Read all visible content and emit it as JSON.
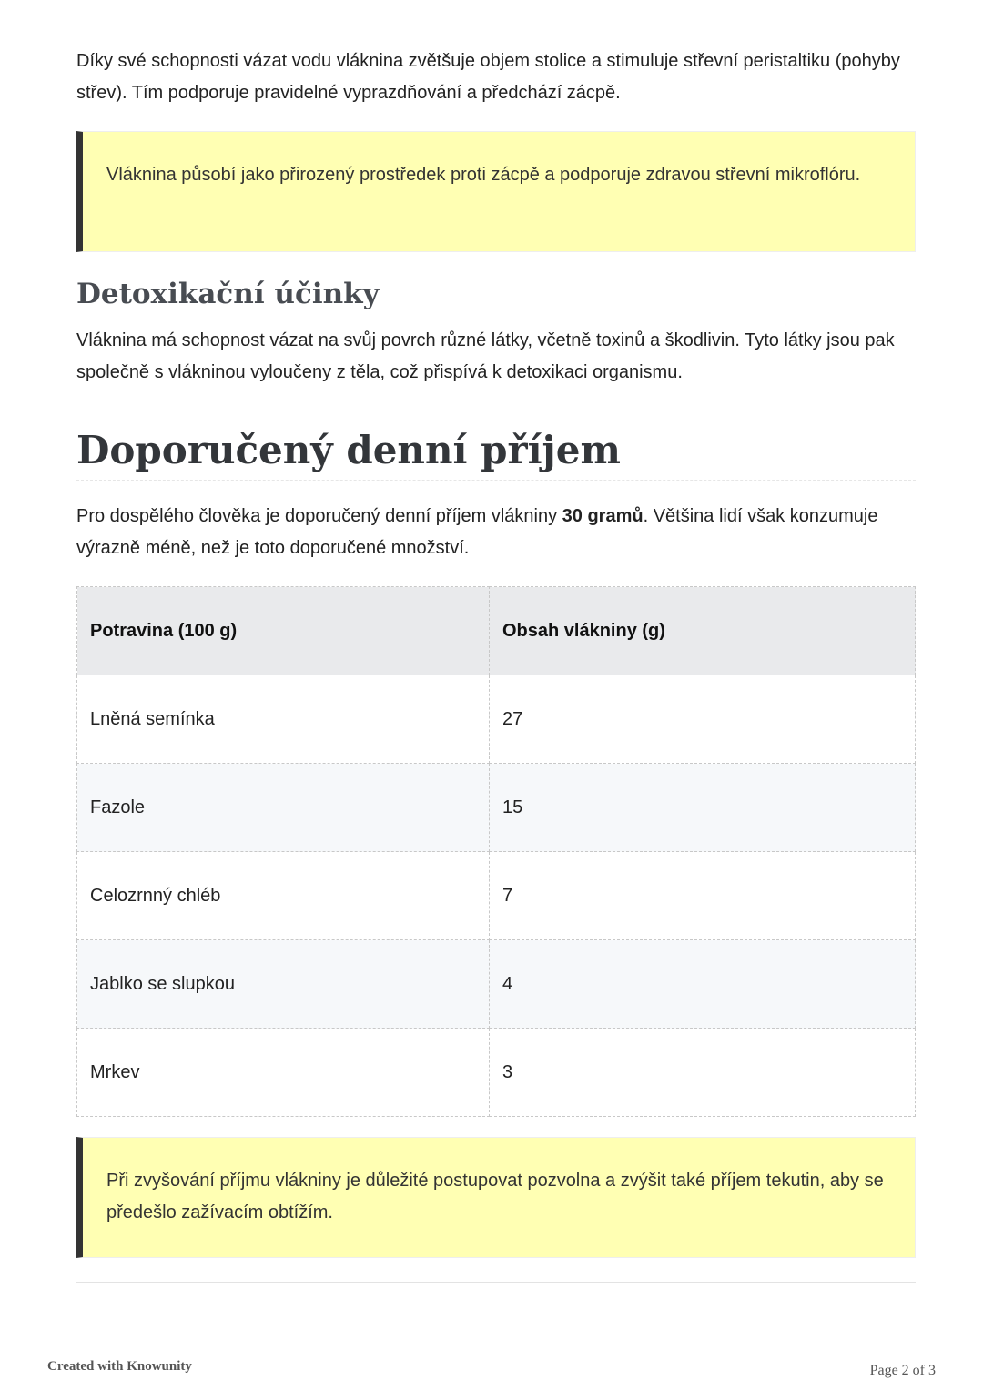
{
  "intro_paragraph": "Díky své schopnosti vázat vodu vláknina zvětšuje objem stolice a stimuluje střevní peristaltiku (pohyby střev). Tím podporuje pravidelné vyprazdňování a předchází zácpě.",
  "callout1": "Vláknina působí jako přirozený prostředek proti zácpě a podporuje zdravou střevní mikroflóru.",
  "section_detox": {
    "heading": "Detoxikační účinky",
    "text": "Vláknina má schopnost vázat na svůj povrch různé látky, včetně toxinů a škodlivin. Tyto látky jsou pak společně s vlákninou vyloučeny z těla, což přispívá k detoxikaci organismu."
  },
  "section_intake": {
    "heading": "Doporučený denní příjem",
    "text_before": "Pro dospělého člověka je doporučený denní příjem vlákniny ",
    "text_bold": "30 gramů",
    "text_after": ". Většina lidí však konzumuje výrazně méně, než je toto doporučené množství."
  },
  "table": {
    "headers": [
      "Potravina (100 g)",
      "Obsah vlákniny (g)"
    ],
    "rows": [
      [
        "Lněná semínka",
        "27"
      ],
      [
        "Fazole",
        "15"
      ],
      [
        "Celozrnný chléb",
        "7"
      ],
      [
        "Jablko se slupkou",
        "4"
      ],
      [
        "Mrkev",
        "3"
      ]
    ]
  },
  "callout2": "Při zvyšování příjmu vlákniny je důležité postupovat pozvolna a zvýšit také příjem tekutin, aby se předešlo zažívacím obtížím.",
  "footer": {
    "left": "Created with Knowunity",
    "right": "Page 2 of 3"
  },
  "colors": {
    "callout_bg": "#ffffb3",
    "callout_border": "#333333",
    "table_header_bg": "#e9eaec"
  }
}
